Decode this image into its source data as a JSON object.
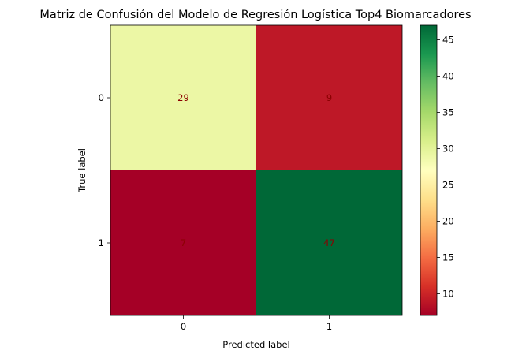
{
  "chart_data": {
    "type": "heatmap",
    "title": "Matriz de Confusión del Modelo de Regresión Logística Top4 Biomarcadores",
    "xlabel": "Predicted label",
    "ylabel": "True label",
    "x_categories": [
      "0",
      "1"
    ],
    "y_categories": [
      "0",
      "1"
    ],
    "values": [
      [
        29,
        9
      ],
      [
        7,
        47
      ]
    ],
    "colormap": "RdYlGn",
    "colorbar": {
      "range": [
        7,
        47
      ],
      "ticks": [
        "10",
        "15",
        "20",
        "25",
        "30",
        "35",
        "40",
        "45"
      ]
    }
  }
}
